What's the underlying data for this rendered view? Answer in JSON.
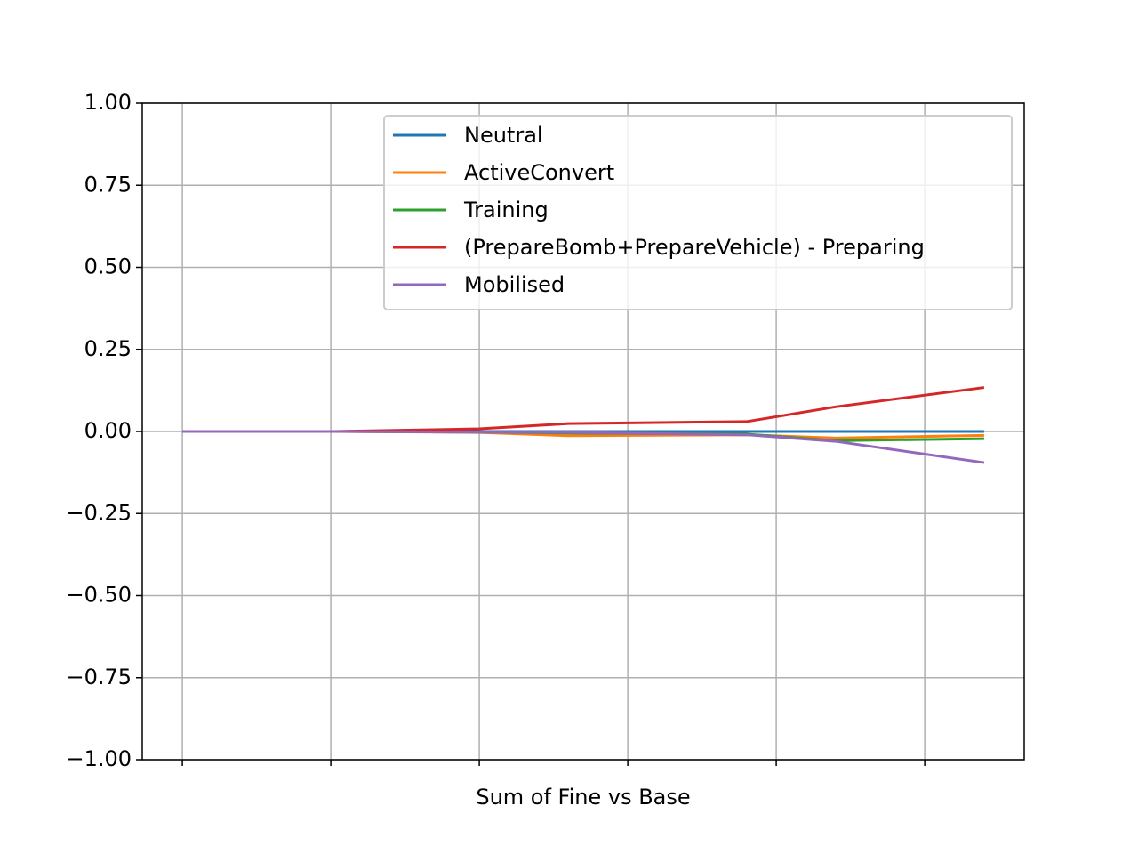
{
  "chart_data": {
    "type": "line",
    "x_label": "Sum of Fine vs Base",
    "x": [
      0,
      1,
      2,
      2.6,
      3.8,
      4.4,
      5.4
    ],
    "series": [
      {
        "name": "Neutral",
        "color": "#1f77b4",
        "values": [
          0,
          0,
          0,
          0,
          0,
          0,
          0
        ]
      },
      {
        "name": "ActiveConvert",
        "color": "#ff7f0e",
        "values": [
          0,
          0,
          -0.003,
          -0.013,
          -0.01,
          -0.02,
          -0.012
        ]
      },
      {
        "name": "Training",
        "color": "#2ca02c",
        "values": [
          0,
          0,
          -0.002,
          -0.005,
          -0.008,
          -0.028,
          -0.022
        ]
      },
      {
        "name": "(PrepareBomb+PrepareVehicle) - Preparing",
        "color": "#d62728",
        "values": [
          0,
          0,
          0.008,
          0.024,
          0.03,
          0.075,
          0.134
        ]
      },
      {
        "name": "Mobilised",
        "color": "#9467bd",
        "values": [
          0,
          0,
          -0.002,
          -0.003,
          -0.01,
          -0.03,
          -0.095
        ]
      }
    ],
    "xlim": [
      -0.27,
      5.67
    ],
    "xticks": [
      0,
      1,
      2,
      3,
      4,
      5
    ],
    "ylim": [
      -1,
      1
    ],
    "yticks": [
      {
        "value": -1,
        "label": "−1.00"
      },
      {
        "value": -0.75,
        "label": "−0.75"
      },
      {
        "value": -0.5,
        "label": "−0.50"
      },
      {
        "value": -0.25,
        "label": "−0.25"
      },
      {
        "value": 0,
        "label": "0.00"
      },
      {
        "value": 0.25,
        "label": "0.25"
      },
      {
        "value": 0.5,
        "label": "0.50"
      },
      {
        "value": 0.75,
        "label": "0.75"
      },
      {
        "value": 1,
        "label": "1.00"
      }
    ],
    "grid": true,
    "legend": "upper right"
  }
}
